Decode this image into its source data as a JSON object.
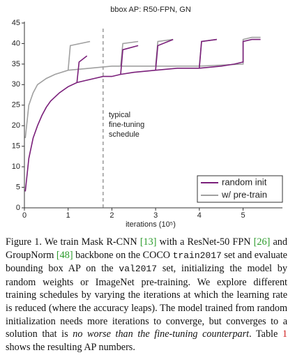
{
  "chart_data": {
    "type": "line",
    "title": "bbox AP: R50-FPN, GN",
    "xlabel": "iterations (10⁵)",
    "xlim": [
      0,
      5.9
    ],
    "xticks": [
      0,
      1,
      2,
      3,
      4,
      5
    ],
    "ylim": [
      0,
      45
    ],
    "yticks": [
      0,
      5,
      10,
      15,
      20,
      25,
      30,
      35,
      40,
      45
    ],
    "legend": "lower right",
    "annotation": {
      "x": 1.8,
      "lines": [
        "typical",
        "fine-tuning",
        "schedule"
      ]
    },
    "series": [
      {
        "name": "random init",
        "color": "#7a1f7a",
        "x": [
          0.02,
          0.1,
          0.2,
          0.3,
          0.4,
          0.5,
          0.6,
          0.8,
          1.0,
          1.2,
          1.4,
          1.6,
          1.8,
          2.0,
          2.2,
          2.5,
          3.0,
          3.5,
          4.0,
          4.5,
          4.8,
          5.0,
          5.0,
          5.2,
          5.4,
          null,
          1.2,
          1.25,
          1.43,
          null,
          2.2,
          2.25,
          2.6,
          null,
          3.0,
          3.05,
          3.4,
          null,
          4.0,
          4.05,
          4.4
        ],
        "values": [
          4,
          12,
          17,
          20,
          22.5,
          24.5,
          26,
          28,
          29.5,
          30.5,
          31,
          31.5,
          32,
          32,
          32.5,
          33,
          33.5,
          34,
          34,
          34.5,
          35,
          35.5,
          40.5,
          41,
          41,
          null,
          30.5,
          35.5,
          37,
          null,
          32.5,
          38.5,
          39.5,
          null,
          33.5,
          39.5,
          41,
          null,
          34,
          40.5,
          41
        ]
      },
      {
        "name": "w/ pre-train",
        "color": "#a0a0a0",
        "x": [
          0.02,
          0.1,
          0.2,
          0.3,
          0.5,
          0.7,
          1.0,
          1.5,
          2.0,
          3.0,
          4.0,
          5.0,
          5.0,
          5.2,
          5.4,
          null,
          1.0,
          1.05,
          1.5,
          null,
          2.2,
          2.25,
          2.6,
          null,
          3.0,
          3.05,
          3.4,
          null,
          4.0,
          4.05,
          4.4
        ],
        "values": [
          17,
          25,
          28,
          30,
          31.5,
          32.5,
          33.5,
          34,
          34.5,
          34.5,
          34.5,
          35,
          41,
          41.5,
          41.5,
          null,
          33.5,
          39.5,
          40.5,
          null,
          34.5,
          40,
          40.5,
          null,
          34.5,
          40.5,
          41,
          null,
          34.5,
          40.5,
          41
        ]
      }
    ]
  },
  "caption": [
    "Figure 1. We train Mask R-CNN ",
    "[13]",
    " with a ResNet-50 FPN ",
    "[26]",
    " and GroupNorm ",
    "[48]",
    " backbone on the COCO ",
    "train2017",
    " set and evaluate bounding box AP on the ",
    "val2017",
    " set, initializing the model by random weights or ImageNet pre-training. We explore different training schedules by varying the iterations at which the learning rate is reduced (where the accuracy leaps). The model trained from random initialization needs more iterations to converge, but converges to a solution that is ",
    "no worse than the fine-tuning counterpart",
    ". Table ",
    "1",
    " shows the resulting AP numbers."
  ]
}
